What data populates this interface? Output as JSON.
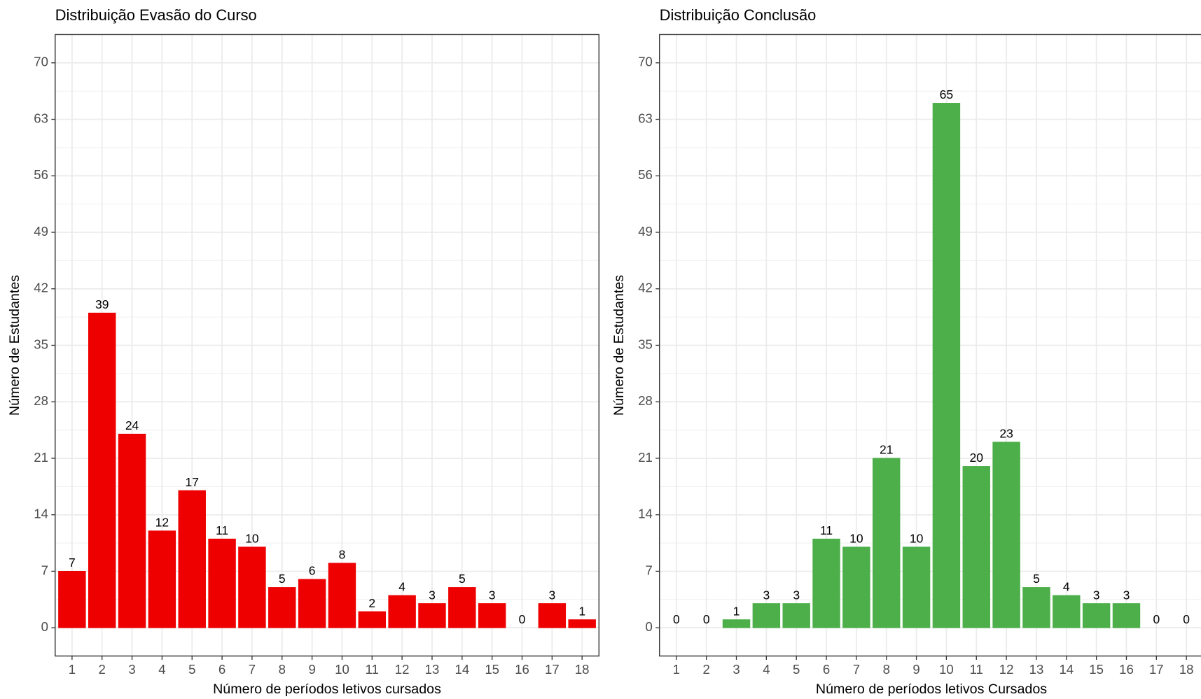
{
  "chart_data": [
    {
      "type": "bar",
      "title": "Distribuição Evasão do Curso",
      "x_label": "Número de períodos letivos cursados",
      "y_label": "Número de Estudantes",
      "categories": [
        "1",
        "2",
        "3",
        "4",
        "5",
        "6",
        "7",
        "8",
        "9",
        "10",
        "11",
        "12",
        "13",
        "14",
        "15",
        "16",
        "17",
        "18"
      ],
      "values": [
        7,
        39,
        24,
        12,
        17,
        11,
        10,
        5,
        6,
        8,
        2,
        4,
        3,
        5,
        3,
        0,
        3,
        1
      ],
      "color": "#ee0000",
      "ylim": [
        -3.5,
        73.5
      ],
      "yticks": [
        0,
        7,
        14,
        21,
        28,
        35,
        42,
        49,
        56,
        63,
        70
      ],
      "grid": true
    },
    {
      "type": "bar",
      "title": "Distribuição Conclusão",
      "x_label": "Número de períodos letivos Cursados",
      "y_label": "Número de Estudantes",
      "categories": [
        "1",
        "2",
        "3",
        "4",
        "5",
        "6",
        "7",
        "8",
        "9",
        "10",
        "11",
        "12",
        "13",
        "14",
        "15",
        "16",
        "17",
        "18"
      ],
      "values": [
        0,
        0,
        1,
        3,
        3,
        11,
        10,
        21,
        10,
        65,
        20,
        23,
        5,
        4,
        3,
        3,
        0,
        0
      ],
      "color": "#4daf4a",
      "ylim": [
        -3.5,
        73.5
      ],
      "yticks": [
        0,
        7,
        14,
        21,
        28,
        35,
        42,
        49,
        56,
        63,
        70
      ],
      "grid": true
    }
  ]
}
